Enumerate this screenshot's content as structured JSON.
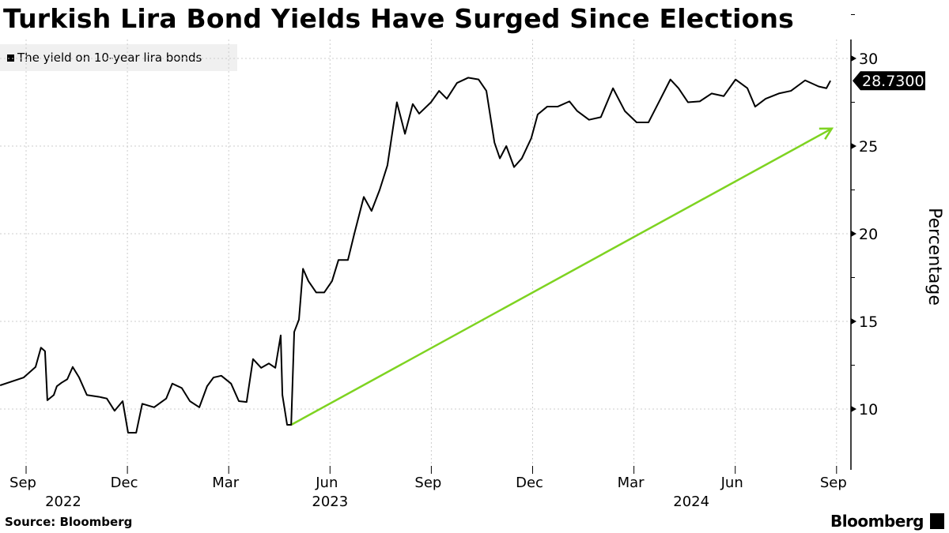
{
  "chart_data": {
    "type": "line",
    "title": "Turkish Lira Bond Yields Have Surged Since Elections",
    "legend": [
      "The yield on 10-year lira bonds"
    ],
    "legend_placement": "top-left",
    "ylabel": "Percentage",
    "ylim": [
      7,
      31.5
    ],
    "yticks": [
      10,
      15,
      20,
      25,
      30
    ],
    "x_unit": "months since 2022-09-01",
    "xlim": [
      -0.77,
      24.4
    ],
    "xticks": [
      {
        "m": 0,
        "label": "Sep"
      },
      {
        "m": 3,
        "label": "Dec"
      },
      {
        "m": 6,
        "label": "Mar"
      },
      {
        "m": 9,
        "label": "Jun"
      },
      {
        "m": 12,
        "label": "Sep"
      },
      {
        "m": 15,
        "label": "Dec"
      },
      {
        "m": 18,
        "label": "Mar"
      },
      {
        "m": 21,
        "label": "Jun"
      },
      {
        "m": 24,
        "label": "Sep"
      }
    ],
    "years": [
      {
        "m": 1.1,
        "label": "2022"
      },
      {
        "m": 9.0,
        "label": "2023"
      },
      {
        "m": 19.7,
        "label": "2024"
      }
    ],
    "last_value_label": "28.7300",
    "line_color": "#000000",
    "arrow_color": "#7ed321",
    "annotation_arrow": {
      "from": [
        7.85,
        9.1
      ],
      "to": [
        23.86,
        26.0
      ]
    },
    "series": [
      {
        "name": "The yield on 10-year lira bonds",
        "points": [
          [
            -0.77,
            11.35
          ],
          [
            -0.07,
            11.8
          ],
          [
            0.28,
            12.4
          ],
          [
            0.44,
            13.5
          ],
          [
            0.56,
            13.3
          ],
          [
            0.63,
            10.5
          ],
          [
            0.82,
            10.8
          ],
          [
            0.91,
            11.3
          ],
          [
            1.05,
            11.5
          ],
          [
            1.22,
            11.7
          ],
          [
            1.38,
            12.4
          ],
          [
            1.57,
            11.8
          ],
          [
            1.8,
            10.8
          ],
          [
            2.15,
            10.7
          ],
          [
            2.39,
            10.6
          ],
          [
            2.62,
            9.9
          ],
          [
            2.86,
            10.45
          ],
          [
            3.02,
            8.65
          ],
          [
            3.26,
            8.65
          ],
          [
            3.44,
            10.3
          ],
          [
            3.79,
            10.1
          ],
          [
            4.15,
            10.6
          ],
          [
            4.33,
            11.45
          ],
          [
            4.61,
            11.2
          ],
          [
            4.85,
            10.45
          ],
          [
            5.13,
            10.1
          ],
          [
            5.36,
            11.3
          ],
          [
            5.55,
            11.8
          ],
          [
            5.78,
            11.9
          ],
          [
            6.07,
            11.45
          ],
          [
            6.3,
            10.45
          ],
          [
            6.53,
            10.4
          ],
          [
            6.72,
            12.85
          ],
          [
            6.96,
            12.35
          ],
          [
            7.19,
            12.6
          ],
          [
            7.38,
            12.35
          ],
          [
            7.54,
            14.2
          ],
          [
            7.59,
            10.8
          ],
          [
            7.73,
            9.1
          ],
          [
            7.85,
            9.1
          ],
          [
            7.94,
            14.4
          ],
          [
            8.08,
            15.1
          ],
          [
            8.2,
            18.0
          ],
          [
            8.36,
            17.3
          ],
          [
            8.59,
            16.65
          ],
          [
            8.83,
            16.65
          ],
          [
            9.06,
            17.3
          ],
          [
            9.25,
            18.5
          ],
          [
            9.53,
            18.5
          ],
          [
            9.72,
            20.0
          ],
          [
            10.0,
            22.1
          ],
          [
            10.23,
            21.3
          ],
          [
            10.47,
            22.5
          ],
          [
            10.7,
            23.9
          ],
          [
            10.82,
            25.45
          ],
          [
            10.98,
            27.5
          ],
          [
            11.22,
            25.7
          ],
          [
            11.45,
            27.4
          ],
          [
            11.64,
            26.85
          ],
          [
            11.99,
            27.5
          ],
          [
            12.23,
            28.15
          ],
          [
            12.46,
            27.7
          ],
          [
            12.76,
            28.6
          ],
          [
            13.09,
            28.9
          ],
          [
            13.4,
            28.8
          ],
          [
            13.63,
            28.15
          ],
          [
            13.87,
            25.2
          ],
          [
            14.03,
            24.3
          ],
          [
            14.22,
            25.0
          ],
          [
            14.45,
            23.8
          ],
          [
            14.68,
            24.3
          ],
          [
            14.96,
            25.45
          ],
          [
            15.15,
            26.8
          ],
          [
            15.43,
            27.25
          ],
          [
            15.74,
            27.25
          ],
          [
            16.09,
            27.55
          ],
          [
            16.32,
            27.0
          ],
          [
            16.67,
            26.5
          ],
          [
            17.02,
            26.65
          ],
          [
            17.38,
            28.3
          ],
          [
            17.73,
            27.0
          ],
          [
            18.08,
            26.35
          ],
          [
            18.43,
            26.35
          ],
          [
            18.71,
            27.4
          ],
          [
            19.08,
            28.8
          ],
          [
            19.32,
            28.3
          ],
          [
            19.6,
            27.5
          ],
          [
            19.95,
            27.55
          ],
          [
            20.3,
            28.0
          ],
          [
            20.66,
            27.85
          ],
          [
            21.01,
            28.8
          ],
          [
            21.36,
            28.3
          ],
          [
            21.59,
            27.25
          ],
          [
            21.9,
            27.7
          ],
          [
            22.29,
            28.0
          ],
          [
            22.65,
            28.15
          ],
          [
            23.07,
            28.75
          ],
          [
            23.47,
            28.4
          ],
          [
            23.7,
            28.3
          ],
          [
            23.82,
            28.73
          ]
        ]
      }
    ]
  },
  "footer": {
    "source": "Source: Bloomberg",
    "brand": "Bloomberg"
  }
}
